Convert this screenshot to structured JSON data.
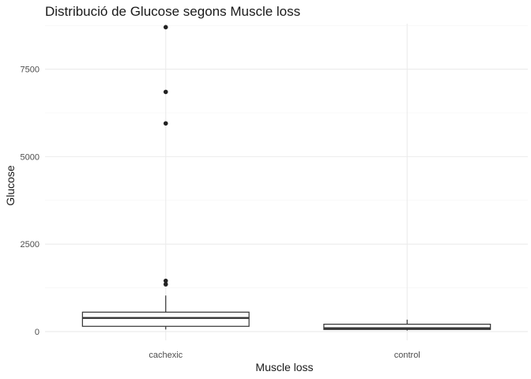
{
  "chart_data": {
    "type": "boxplot",
    "title": "Distribució de Glucose segons Muscle loss",
    "xlabel": "Muscle loss",
    "ylabel": "Glucose",
    "categories": [
      "cachexic",
      "control"
    ],
    "ylim": [
      -250,
      8800
    ],
    "yticks": [
      0,
      2500,
      5000,
      7500
    ],
    "ytick_labels": [
      "0",
      "2500",
      "5000",
      "7500"
    ],
    "grid": true,
    "boxes": [
      {
        "category": "cachexic",
        "whisker_low": 60,
        "q1": 150,
        "median": 390,
        "q3": 555,
        "whisker_high": 1030,
        "outliers": [
          1350,
          1450,
          5950,
          6850,
          8700
        ]
      },
      {
        "category": "control",
        "whisker_low": 30,
        "q1": 60,
        "median": 95,
        "q3": 210,
        "whisker_high": 340,
        "outliers": []
      }
    ]
  }
}
